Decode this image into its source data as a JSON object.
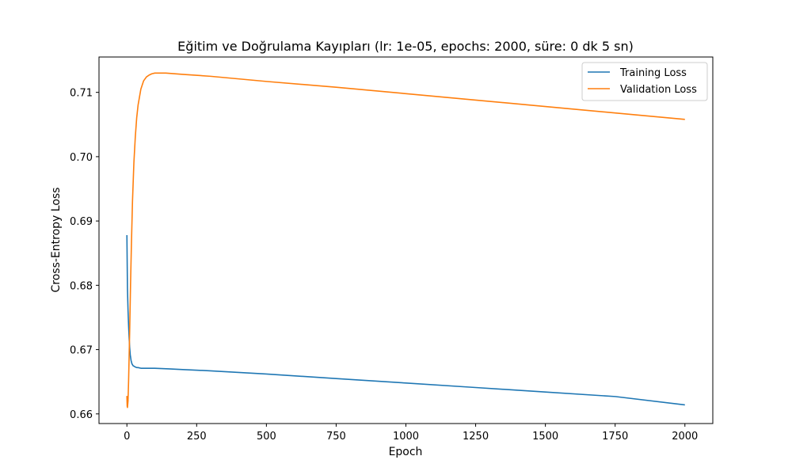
{
  "chart_data": {
    "type": "line",
    "title": "Eğitim ve Doğrulama Kayıpları (lr: 1e-05, epochs: 2000, süre: 0 dk 5 sn)",
    "xlabel": "Epoch",
    "ylabel": "Cross-Entropy Loss",
    "xlim": [
      -100,
      2100
    ],
    "ylim": [
      0.6585,
      0.7155
    ],
    "xticks": [
      0,
      250,
      500,
      750,
      1000,
      1250,
      1500,
      1750,
      2000
    ],
    "xtick_labels": [
      "0",
      "250",
      "500",
      "750",
      "1000",
      "1250",
      "1500",
      "1750",
      "2000"
    ],
    "yticks": [
      0.66,
      0.67,
      0.68,
      0.69,
      0.7,
      0.71
    ],
    "ytick_labels": [
      "0.66",
      "0.67",
      "0.68",
      "0.69",
      "0.70",
      "0.71"
    ],
    "grid": false,
    "legend": "top-right",
    "series": [
      {
        "name": "Training Loss",
        "color": "#1f77b4",
        "x": [
          0,
          2,
          4,
          6,
          8,
          10,
          12,
          15,
          18,
          22,
          26,
          30,
          35,
          40,
          50,
          60,
          80,
          100,
          150,
          200,
          300,
          500,
          750,
          1000,
          1250,
          1500,
          1750,
          2000
        ],
        "y": [
          0.6878,
          0.6795,
          0.6762,
          0.6738,
          0.6718,
          0.6703,
          0.6692,
          0.6683,
          0.6678,
          0.6675,
          0.6674,
          0.6673,
          0.6672,
          0.6672,
          0.6671,
          0.6671,
          0.6671,
          0.6671,
          0.667,
          0.6669,
          0.6667,
          0.6662,
          0.6655,
          0.6648,
          0.6641,
          0.6634,
          0.6627,
          0.6614
        ]
      },
      {
        "name": "Validation Loss",
        "color": "#ff7f0e",
        "x": [
          0,
          1,
          2,
          4,
          6,
          8,
          10,
          13,
          16,
          20,
          25,
          30,
          35,
          40,
          50,
          60,
          70,
          80,
          90,
          100,
          110,
          125,
          140,
          200,
          300,
          500,
          750,
          1000,
          1250,
          1500,
          1750,
          2000
        ],
        "y": [
          0.6628,
          0.6612,
          0.661,
          0.662,
          0.665,
          0.669,
          0.673,
          0.68,
          0.686,
          0.693,
          0.699,
          0.703,
          0.706,
          0.708,
          0.7105,
          0.7118,
          0.7124,
          0.7127,
          0.7129,
          0.713,
          0.713,
          0.713,
          0.713,
          0.7128,
          0.7125,
          0.7117,
          0.7108,
          0.7098,
          0.7088,
          0.7078,
          0.7068,
          0.7058
        ]
      }
    ]
  }
}
